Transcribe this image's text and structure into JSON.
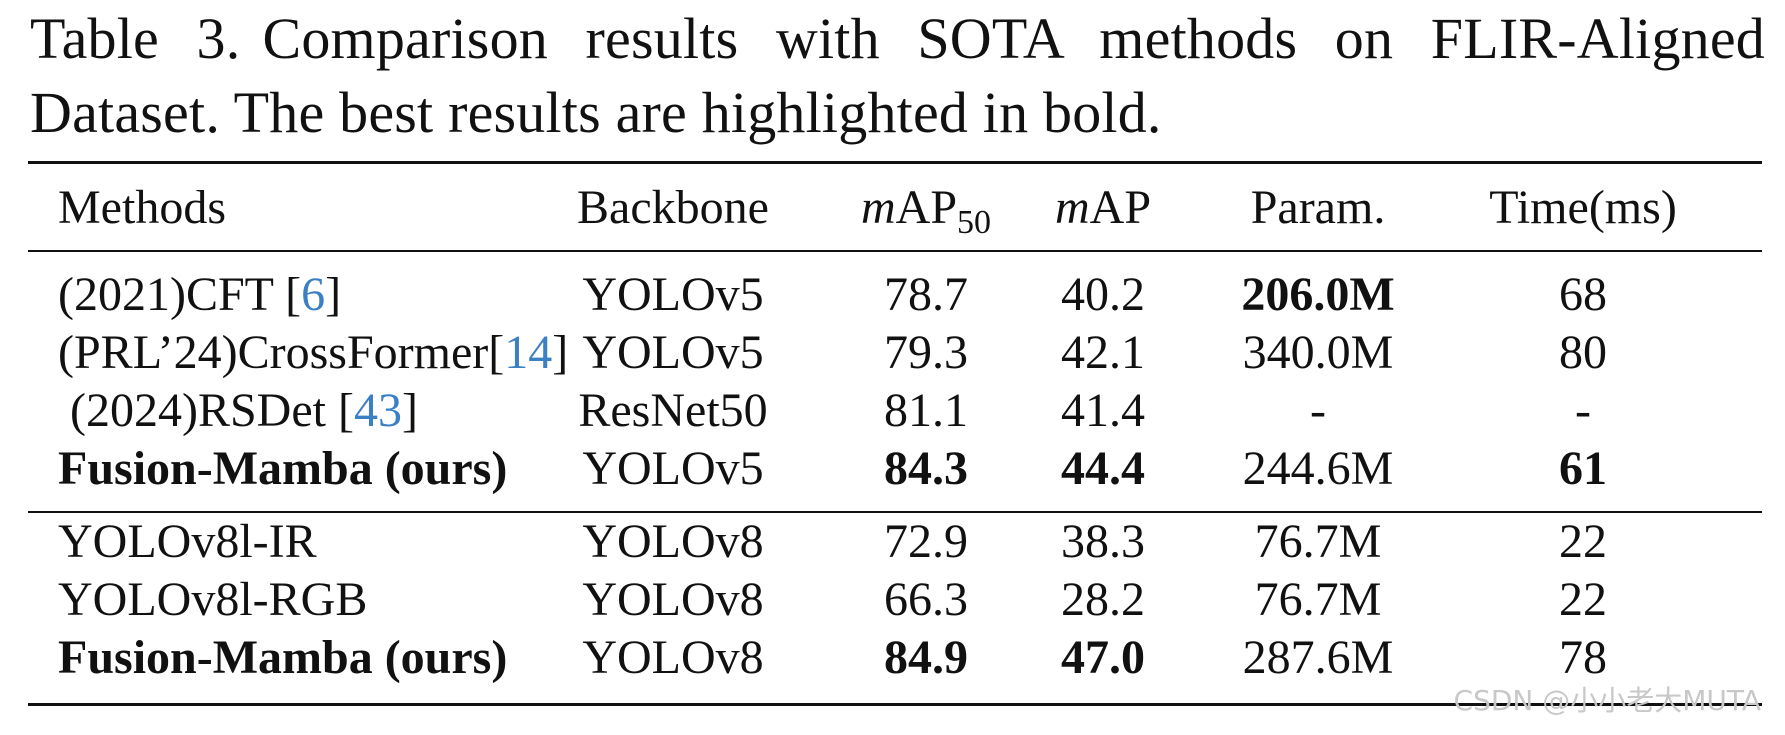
{
  "caption": {
    "label": "Table 3.",
    "text": "Comparison results with SOTA methods on FLIR-Aligned Dataset. The best results are highlighted in bold."
  },
  "table": {
    "headers": {
      "methods": "Methods",
      "backbone": "Backbone",
      "map50_italic": "m",
      "map50_main": "AP",
      "map50_sub": "50",
      "map_italic": "m",
      "map_main": "AP",
      "param": "Param.",
      "time": "Time(ms)"
    },
    "rows": [
      {
        "method_prefix": "(2021)CFT [",
        "citation": "6",
        "method_suffix": "]",
        "backbone": "YOLOv5",
        "map50": "78.7",
        "map": "40.2",
        "param": "206.0M",
        "time": "68"
      },
      {
        "method_prefix": "(PRL’24)CrossFormer[",
        "citation": "14",
        "method_suffix": "]",
        "backbone": "YOLOv5",
        "map50": "79.3",
        "map": "42.1",
        "param": "340.0M",
        "time": "80"
      },
      {
        "method_prefix": "(2024)RSDet [",
        "citation": "43",
        "method_suffix": "]",
        "backbone": "ResNet50",
        "map50": "81.1",
        "map": "41.4",
        "param": "-",
        "time": "-"
      },
      {
        "method": "Fusion-Mamba (ours)",
        "backbone": "YOLOv5",
        "map50": "84.3",
        "map": "44.4",
        "param": "244.6M",
        "time": "61"
      },
      {
        "method": "YOLOv8l-IR",
        "backbone": "YOLOv8",
        "map50": "72.9",
        "map": "38.3",
        "param": "76.7M",
        "time": "22"
      },
      {
        "method": "YOLOv8l-RGB",
        "backbone": "YOLOv8",
        "map50": "66.3",
        "map": "28.2",
        "param": "76.7M",
        "time": "22"
      },
      {
        "method": "Fusion-Mamba (ours)",
        "backbone": "YOLOv8",
        "map50": "84.9",
        "map": "47.0",
        "param": "287.6M",
        "time": "78"
      }
    ]
  },
  "watermark": "CSDN @小小老大MUTA",
  "colors": {
    "citation": "#3b7fc4",
    "text": "#111111",
    "watermark": "#c8c8c8"
  }
}
